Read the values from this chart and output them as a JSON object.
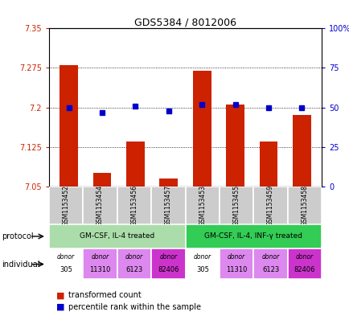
{
  "title": "GDS5384 / 8012006",
  "samples": [
    "GSM1153452",
    "GSM1153454",
    "GSM1153456",
    "GSM1153457",
    "GSM1153453",
    "GSM1153455",
    "GSM1153459",
    "GSM1153458"
  ],
  "bar_values": [
    7.28,
    7.075,
    7.135,
    7.065,
    7.27,
    7.205,
    7.135,
    7.185
  ],
  "dot_values": [
    50,
    47,
    51,
    48,
    52,
    52,
    50,
    50
  ],
  "bar_color": "#cc2200",
  "dot_color": "#0000cc",
  "ymin": 7.05,
  "ymax": 7.35,
  "y2min": 0,
  "y2max": 100,
  "yticks": [
    7.05,
    7.125,
    7.2,
    7.275,
    7.35
  ],
  "ytick_labels": [
    "7.05",
    "7.125",
    "7.2",
    "7.275",
    "7.35"
  ],
  "y2ticks": [
    0,
    25,
    50,
    75,
    100
  ],
  "y2tick_labels": [
    "0",
    "25",
    "50",
    "75",
    "100%"
  ],
  "protocol_groups": [
    {
      "label": "GM-CSF, IL-4 treated",
      "start": 0,
      "end": 4,
      "color": "#aaddaa"
    },
    {
      "label": "GM-CSF, IL-4, INF-γ treated",
      "start": 4,
      "end": 8,
      "color": "#33cc55"
    }
  ],
  "ind_labels_top": [
    "donor",
    "donor",
    "donor",
    "donor",
    "donor",
    "donor",
    "donor",
    "donor"
  ],
  "ind_labels_bot": [
    "305",
    "11310",
    "6123",
    "82406",
    "305",
    "11310",
    "6123",
    "82406"
  ],
  "ind_bg": [
    "#ffffff",
    "#dd88ee",
    "#dd88ee",
    "#cc33cc",
    "#ffffff",
    "#dd88ee",
    "#dd88ee",
    "#cc33cc"
  ],
  "legend_items": [
    {
      "color": "#cc2200",
      "label": "transformed count"
    },
    {
      "color": "#0000cc",
      "label": "percentile rank within the sample"
    }
  ],
  "left_label_color": "#cc2200",
  "right_label_color": "#0000cc",
  "bar_baseline": 7.05
}
